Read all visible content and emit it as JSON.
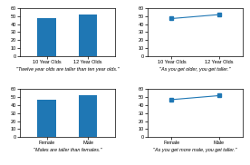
{
  "chart_data": [
    {
      "type": "bar",
      "categories": [
        "10 Year Olds",
        "12 Year Olds"
      ],
      "values": [
        47,
        52
      ],
      "xlabel": "\"Twelve year olds are taller than ten year olds.\"",
      "ylim": [
        0,
        60
      ],
      "yticks": [
        0,
        10,
        20,
        30,
        40,
        50,
        60
      ]
    },
    {
      "type": "line",
      "categories": [
        "10 Year Olds",
        "12 Year Olds"
      ],
      "values": [
        47,
        52
      ],
      "xlabel": "\"As you get older, you get taller.\"",
      "marker": "square",
      "ylim": [
        0,
        60
      ],
      "yticks": [
        0,
        10,
        20,
        30,
        40,
        50,
        60
      ]
    },
    {
      "type": "bar",
      "categories": [
        "Female",
        "Male"
      ],
      "values": [
        47,
        52
      ],
      "xlabel": "\"Males are taller than females.\"",
      "ylim": [
        0,
        60
      ],
      "yticks": [
        0,
        10,
        20,
        30,
        40,
        50,
        60
      ]
    },
    {
      "type": "line",
      "categories": [
        "Female",
        "Male"
      ],
      "values": [
        47,
        52
      ],
      "xlabel": "\"As you get more male, you get taller.\"",
      "marker": "square",
      "ylim": [
        0,
        60
      ],
      "yticks": [
        0,
        10,
        20,
        30,
        40,
        50,
        60
      ]
    }
  ]
}
